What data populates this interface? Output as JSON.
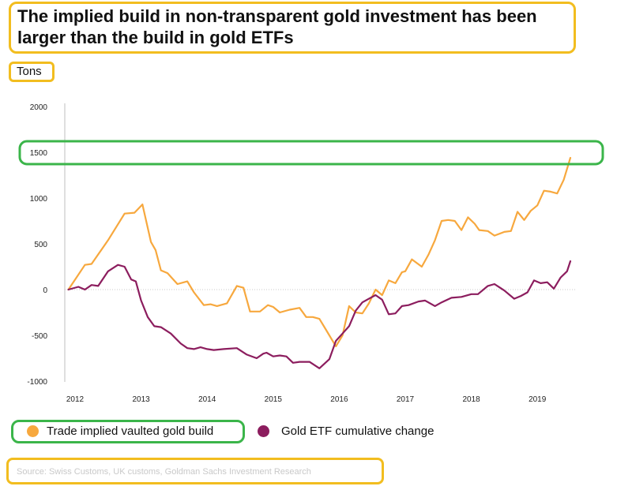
{
  "chart_data": {
    "type": "line",
    "title": "The implied build in non-transparent gold investment has been larger than the build in gold ETFs",
    "ylabel": "Tons",
    "xlabel": "",
    "source": "Source: Swiss Customs, UK customs, Goldman Sachs Investment Research",
    "ylim": [
      -1000,
      2000
    ],
    "xlim": [
      2012,
      2019.6
    ],
    "yticks": [
      2000,
      1500,
      1000,
      500,
      0,
      -500,
      -1000
    ],
    "yticks_labels": [
      "2000",
      "1500",
      "1000",
      "500",
      "0",
      "-500",
      "-1000"
    ],
    "xticks": [
      2012,
      2013,
      2014,
      2015,
      2016,
      2017,
      2018,
      2019
    ],
    "xticks_labels": [
      "2012",
      "2013",
      "2014",
      "2015",
      "2016",
      "2017",
      "2018",
      "2019"
    ],
    "grid": false,
    "zero_line": "dotted",
    "legend_position": "bottom-left",
    "series": [
      {
        "name": "Trade implied vaulted gold build",
        "color": "#f7a83e",
        "x": [
          2011.9,
          2012.15,
          2012.25,
          2012.5,
          2012.75,
          2012.9,
          2013.02,
          2013.15,
          2013.22,
          2013.3,
          2013.4,
          2013.55,
          2013.7,
          2013.8,
          2013.95,
          2014.05,
          2014.15,
          2014.3,
          2014.45,
          2014.55,
          2014.65,
          2014.8,
          2014.92,
          2015.0,
          2015.1,
          2015.25,
          2015.4,
          2015.5,
          2015.6,
          2015.7,
          2015.8,
          2015.95,
          2016.05,
          2016.15,
          2016.25,
          2016.35,
          2016.45,
          2016.55,
          2016.65,
          2016.75,
          2016.85,
          2016.95,
          2017.0,
          2017.1,
          2017.25,
          2017.35,
          2017.45,
          2017.55,
          2017.65,
          2017.75,
          2017.85,
          2017.95,
          2018.05,
          2018.12,
          2018.25,
          2018.35,
          2018.5,
          2018.6,
          2018.7,
          2018.8,
          2018.9,
          2019.0,
          2019.1,
          2019.2,
          2019.3,
          2019.4,
          2019.5
        ],
        "y": [
          0,
          270,
          280,
          540,
          830,
          840,
          930,
          520,
          430,
          210,
          180,
          60,
          90,
          -30,
          -170,
          -160,
          -180,
          -150,
          40,
          20,
          -240,
          -240,
          -170,
          -190,
          -250,
          -220,
          -200,
          -300,
          -300,
          -320,
          -440,
          -620,
          -500,
          -180,
          -250,
          -260,
          -150,
          0,
          -60,
          100,
          70,
          190,
          200,
          330,
          250,
          380,
          540,
          750,
          760,
          750,
          650,
          790,
          720,
          650,
          640,
          590,
          630,
          640,
          850,
          760,
          860,
          920,
          1080,
          1070,
          1050,
          1200,
          1440
        ]
      },
      {
        "name": "Gold ETF cumulative change",
        "color": "#8c1d5e",
        "x": [
          2011.9,
          2012.05,
          2012.15,
          2012.25,
          2012.35,
          2012.5,
          2012.65,
          2012.75,
          2012.85,
          2012.92,
          2013.0,
          2013.1,
          2013.2,
          2013.3,
          2013.45,
          2013.6,
          2013.7,
          2013.8,
          2013.9,
          2014.0,
          2014.1,
          2014.25,
          2014.45,
          2014.6,
          2014.75,
          2014.85,
          2014.9,
          2015.0,
          2015.1,
          2015.2,
          2015.3,
          2015.4,
          2015.55,
          2015.7,
          2015.85,
          2015.95,
          2016.05,
          2016.15,
          2016.25,
          2016.35,
          2016.45,
          2016.55,
          2016.65,
          2016.75,
          2016.85,
          2016.95,
          2017.05,
          2017.2,
          2017.3,
          2017.45,
          2017.55,
          2017.7,
          2017.85,
          2018.0,
          2018.1,
          2018.25,
          2018.35,
          2018.5,
          2018.65,
          2018.75,
          2018.85,
          2018.95,
          2019.05,
          2019.15,
          2019.25,
          2019.35,
          2019.45,
          2019.5
        ],
        "y": [
          0,
          30,
          0,
          50,
          40,
          200,
          270,
          250,
          110,
          90,
          -120,
          -300,
          -400,
          -410,
          -480,
          -590,
          -640,
          -650,
          -630,
          -650,
          -660,
          -650,
          -640,
          -710,
          -750,
          -700,
          -690,
          -730,
          -720,
          -730,
          -800,
          -790,
          -790,
          -860,
          -760,
          -560,
          -480,
          -400,
          -230,
          -140,
          -100,
          -60,
          -110,
          -270,
          -260,
          -180,
          -170,
          -130,
          -120,
          -180,
          -140,
          -90,
          -80,
          -50,
          -50,
          40,
          60,
          -10,
          -100,
          -70,
          -30,
          100,
          70,
          80,
          10,
          130,
          200,
          310
        ]
      }
    ]
  },
  "legend": {
    "items": [
      {
        "label": "Trade implied vaulted gold build",
        "color": "#f7a83e"
      },
      {
        "label": "Gold ETF cumulative change",
        "color": "#8c1d5e"
      }
    ]
  }
}
